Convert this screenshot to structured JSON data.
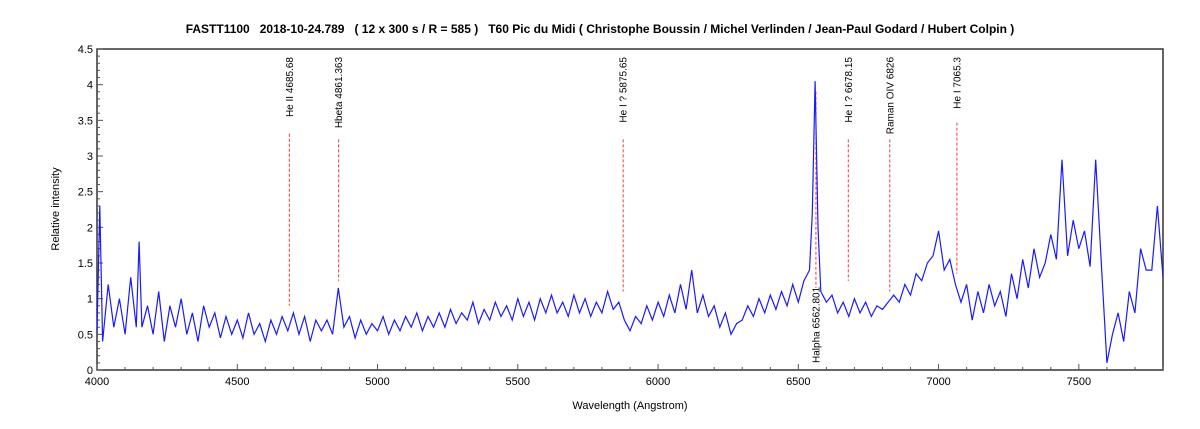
{
  "chart_data": {
    "type": "line",
    "title": "FASTT1100   2018-10-24.789   ( 12 x 300 s / R = 585 )   T60 Pic du Midi ( Christophe Boussin / Michel Verlinden / Jean-Paul Godard / Hubert Colpin )",
    "xlabel": "Wavelength (Angstrom)",
    "ylabel": "Relative intensity",
    "xlim": [
      4000,
      7800
    ],
    "ylim": [
      0,
      4.5
    ],
    "x_ticks": [
      "4000",
      "4500",
      "5000",
      "5500",
      "6000",
      "6500",
      "7000",
      "7500"
    ],
    "y_ticks": [
      "0",
      "0.5",
      "1",
      "1.5",
      "2",
      "2.5",
      "3",
      "3.5",
      "4",
      "4.5"
    ],
    "grid": false,
    "series_color": "#1a1aff",
    "marker_color": "#ff3333",
    "series": [
      {
        "x": [
          4000,
          4010,
          4020,
          4040,
          4060,
          4080,
          4100,
          4120,
          4140,
          4150,
          4160,
          4180,
          4200,
          4220,
          4240,
          4260,
          4280,
          4300,
          4320,
          4340,
          4360,
          4380,
          4400,
          4420,
          4440,
          4460,
          4480,
          4500,
          4520,
          4540,
          4560,
          4580,
          4600,
          4620,
          4640,
          4660,
          4680,
          4700,
          4720,
          4740,
          4760,
          4780,
          4800,
          4820,
          4840,
          4860,
          4880,
          4900,
          4920,
          4940,
          4960,
          4980,
          5000,
          5020,
          5040,
          5060,
          5080,
          5100,
          5120,
          5140,
          5160,
          5180,
          5200,
          5220,
          5240,
          5260,
          5280,
          5300,
          5320,
          5340,
          5360,
          5380,
          5400,
          5420,
          5440,
          5460,
          5480,
          5500,
          5520,
          5540,
          5560,
          5580,
          5600,
          5620,
          5640,
          5660,
          5680,
          5700,
          5720,
          5740,
          5760,
          5780,
          5800,
          5820,
          5840,
          5860,
          5880,
          5900,
          5920,
          5940,
          5960,
          5980,
          6000,
          6020,
          6040,
          6060,
          6080,
          6100,
          6120,
          6140,
          6160,
          6180,
          6200,
          6220,
          6240,
          6260,
          6280,
          6300,
          6320,
          6340,
          6360,
          6380,
          6400,
          6420,
          6440,
          6460,
          6480,
          6500,
          6520,
          6540,
          6550,
          6560,
          6570,
          6580,
          6600,
          6620,
          6640,
          6660,
          6680,
          6700,
          6720,
          6740,
          6760,
          6780,
          6800,
          6820,
          6840,
          6860,
          6880,
          6900,
          6920,
          6940,
          6960,
          6980,
          7000,
          7020,
          7040,
          7060,
          7080,
          7100,
          7120,
          7140,
          7160,
          7180,
          7200,
          7220,
          7240,
          7260,
          7280,
          7300,
          7320,
          7340,
          7360,
          7380,
          7400,
          7420,
          7440,
          7460,
          7480,
          7500,
          7520,
          7540,
          7560,
          7580,
          7600,
          7620,
          7640,
          7660,
          7680,
          7700,
          7720,
          7740,
          7760,
          7780,
          7800
        ],
        "y": [
          0.55,
          2.3,
          0.4,
          1.2,
          0.6,
          1.0,
          0.5,
          1.3,
          0.6,
          1.8,
          0.6,
          0.9,
          0.5,
          1.1,
          0.4,
          0.9,
          0.6,
          1.0,
          0.5,
          0.8,
          0.4,
          0.9,
          0.6,
          0.8,
          0.45,
          0.75,
          0.5,
          0.7,
          0.45,
          0.8,
          0.5,
          0.65,
          0.4,
          0.7,
          0.5,
          0.75,
          0.55,
          0.8,
          0.5,
          0.75,
          0.4,
          0.7,
          0.55,
          0.7,
          0.5,
          1.15,
          0.6,
          0.75,
          0.45,
          0.7,
          0.5,
          0.65,
          0.55,
          0.75,
          0.5,
          0.7,
          0.55,
          0.75,
          0.6,
          0.8,
          0.55,
          0.75,
          0.6,
          0.8,
          0.6,
          0.85,
          0.65,
          0.8,
          0.7,
          0.95,
          0.65,
          0.85,
          0.7,
          0.95,
          0.75,
          0.9,
          0.7,
          1.0,
          0.75,
          0.95,
          0.7,
          1.0,
          0.8,
          1.05,
          0.8,
          0.95,
          0.75,
          1.05,
          0.8,
          1.0,
          0.75,
          0.95,
          0.8,
          1.1,
          0.85,
          0.95,
          0.7,
          0.55,
          0.75,
          0.65,
          0.9,
          0.7,
          0.95,
          0.75,
          1.05,
          0.8,
          1.2,
          0.85,
          1.4,
          0.8,
          1.05,
          0.75,
          0.9,
          0.6,
          0.8,
          0.5,
          0.65,
          0.7,
          0.9,
          0.75,
          1.0,
          0.8,
          1.05,
          0.85,
          1.1,
          0.9,
          1.2,
          0.95,
          1.25,
          1.4,
          2.2,
          4.05,
          2.0,
          1.1,
          0.95,
          1.05,
          0.8,
          0.95,
          0.75,
          1.0,
          0.8,
          0.95,
          0.75,
          0.9,
          0.85,
          0.95,
          1.05,
          0.95,
          1.2,
          1.05,
          1.35,
          1.25,
          1.5,
          1.6,
          1.95,
          1.4,
          1.55,
          1.2,
          0.95,
          1.2,
          0.7,
          1.1,
          0.8,
          1.2,
          0.9,
          1.1,
          0.75,
          1.35,
          1.0,
          1.55,
          1.15,
          1.7,
          1.3,
          1.5,
          1.9,
          1.55,
          2.95,
          1.6,
          2.1,
          1.7,
          1.95,
          1.45,
          2.95,
          1.5,
          0.1,
          0.5,
          0.8,
          0.4,
          1.1,
          0.8,
          1.7,
          1.4,
          1.4,
          2.3,
          1.3
        ]
      }
    ],
    "annotations": [
      {
        "label": "He II 4685.68",
        "x": 4685.68,
        "y_end": 0.9,
        "position": "above"
      },
      {
        "label": "Hbeta 4861.363",
        "x": 4861.363,
        "y_end": 1.25,
        "position": "above"
      },
      {
        "label": "He I ? 5875.65",
        "x": 5875.65,
        "y_end": 1.1,
        "position": "above"
      },
      {
        "label": "Halpha 6562.801",
        "x": 6562.801,
        "y_end": 3.9,
        "position": "below"
      },
      {
        "label": "He I ? 6678.15",
        "x": 6678.15,
        "y_end": 1.25,
        "position": "above"
      },
      {
        "label": "Raman OIV 6826",
        "x": 6826,
        "y_end": 1.1,
        "position": "above"
      },
      {
        "label": "He I 7065.3",
        "x": 7065.3,
        "y_end": 1.35,
        "position": "above"
      }
    ]
  }
}
